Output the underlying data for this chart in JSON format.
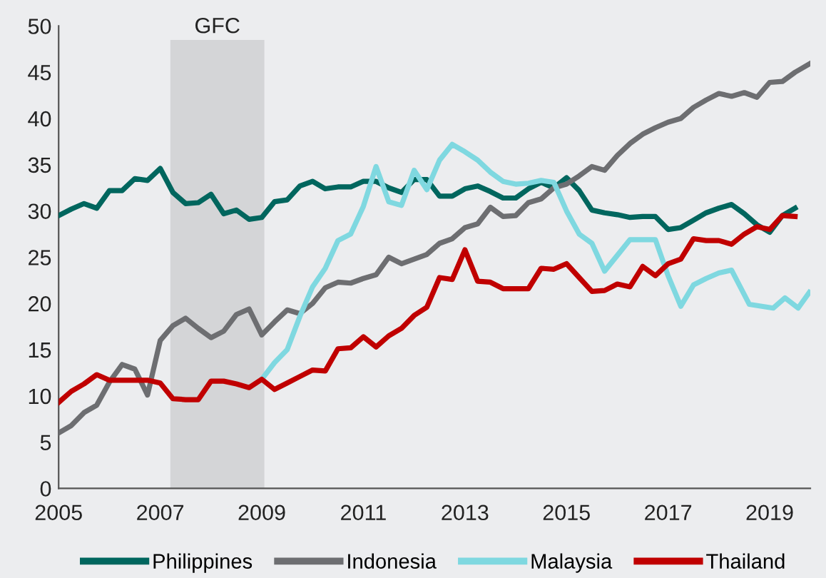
{
  "chart_data": {
    "type": "line",
    "xlim": [
      2005,
      2019.8
    ],
    "xticks": [
      2005,
      2007,
      2009,
      2011,
      2013,
      2015,
      2017,
      2019
    ],
    "ylim": [
      0,
      50
    ],
    "yticks": [
      0,
      5,
      10,
      15,
      20,
      25,
      30,
      35,
      40,
      45,
      50
    ],
    "grid": false,
    "legend": "bottom",
    "line_style": "solid",
    "marker": "none",
    "bands": [
      {
        "axis": "x",
        "from": 2007.2,
        "to": 2009.05,
        "label": "GFC",
        "color": "#d4d5d7"
      }
    ],
    "series": [
      {
        "name": "Philippines",
        "color": "#00665e",
        "x": [
          2005,
          2005.25,
          2005.5,
          2005.75,
          2006,
          2006.25,
          2006.5,
          2006.75,
          2007,
          2007.25,
          2007.5,
          2007.75,
          2008,
          2008.25,
          2008.5,
          2008.75,
          2009,
          2009.25,
          2009.5,
          2009.75,
          2010,
          2010.25,
          2010.5,
          2010.75,
          2011,
          2011.25,
          2011.5,
          2011.75,
          2012,
          2012.25,
          2012.5,
          2012.75,
          2013,
          2013.25,
          2013.5,
          2013.75,
          2014,
          2014.25,
          2014.5,
          2014.75,
          2015,
          2015.25,
          2015.5,
          2015.75,
          2016,
          2016.25,
          2016.5,
          2016.75,
          2017,
          2017.25,
          2017.5,
          2017.75,
          2018,
          2018.25,
          2018.5,
          2018.75,
          2019,
          2019.25,
          2019.5
        ],
        "values": [
          29.5,
          30.2,
          30.8,
          30.3,
          32.2,
          32.2,
          33.5,
          33.3,
          34.6,
          32.0,
          30.8,
          30.9,
          31.8,
          29.7,
          30.1,
          29.1,
          29.3,
          31.0,
          31.2,
          32.7,
          33.2,
          32.4,
          32.6,
          32.6,
          33.2,
          33.2,
          32.5,
          32.0,
          33.4,
          33.4,
          31.6,
          31.6,
          32.4,
          32.7,
          32.1,
          31.4,
          31.4,
          32.4,
          33.1,
          32.5,
          33.6,
          32.2,
          30.1,
          29.8,
          29.6,
          29.3,
          29.4,
          29.4,
          28.0,
          28.2,
          29.0,
          29.8,
          30.3,
          30.7,
          29.7,
          28.5,
          27.7,
          29.5,
          30.3
        ]
      },
      {
        "name": "Indonesia",
        "color": "#6d6e71",
        "x": [
          2005,
          2005.25,
          2005.5,
          2005.75,
          2006,
          2006.25,
          2006.5,
          2006.75,
          2007,
          2007.25,
          2007.5,
          2007.75,
          2008,
          2008.25,
          2008.5,
          2008.75,
          2009,
          2009.25,
          2009.5,
          2009.75,
          2010,
          2010.25,
          2010.5,
          2010.75,
          2011,
          2011.25,
          2011.5,
          2011.75,
          2012,
          2012.25,
          2012.5,
          2012.75,
          2013,
          2013.25,
          2013.5,
          2013.75,
          2014,
          2014.25,
          2014.5,
          2014.75,
          2015,
          2015.25,
          2015.5,
          2015.75,
          2016,
          2016.25,
          2016.5,
          2016.75,
          2017,
          2017.25,
          2017.5,
          2017.75,
          2018,
          2018.25,
          2018.5,
          2018.75,
          2019,
          2019.25,
          2019.5,
          2019.78
        ],
        "values": [
          6.0,
          6.8,
          8.2,
          9.0,
          11.5,
          13.4,
          12.9,
          10.1,
          16.0,
          17.6,
          18.4,
          17.3,
          16.3,
          17.0,
          18.8,
          19.4,
          16.6,
          18.0,
          19.3,
          18.9,
          20.0,
          21.7,
          22.3,
          22.2,
          22.7,
          23.1,
          25.0,
          24.3,
          24.8,
          25.3,
          26.5,
          27.0,
          28.2,
          28.6,
          30.4,
          29.4,
          29.5,
          30.9,
          31.3,
          32.5,
          32.9,
          33.8,
          34.8,
          34.4,
          36.0,
          37.3,
          38.3,
          39.0,
          39.6,
          40.0,
          41.2,
          42.0,
          42.7,
          42.4,
          42.8,
          42.3,
          43.9,
          44.0,
          45.0,
          45.9
        ]
      },
      {
        "name": "Malaysia",
        "color": "#7fd8e0",
        "x": [
          2009,
          2009.25,
          2009.5,
          2009.75,
          2010,
          2010.25,
          2010.5,
          2010.75,
          2011,
          2011.25,
          2011.5,
          2011.75,
          2012,
          2012.25,
          2012.5,
          2012.75,
          2013,
          2013.25,
          2013.5,
          2013.75,
          2014,
          2014.25,
          2014.5,
          2014.75,
          2015,
          2015.25,
          2015.5,
          2015.75,
          2016,
          2016.25,
          2016.5,
          2016.75,
          2017,
          2017.25,
          2017.5,
          2017.75,
          2018,
          2018.25,
          2018.6,
          2019.07,
          2019.3,
          2019.56,
          2019.78
        ],
        "values": [
          11.8,
          13.6,
          15.0,
          18.6,
          21.8,
          23.8,
          26.8,
          27.5,
          30.5,
          34.8,
          31.0,
          30.6,
          34.4,
          32.3,
          35.5,
          37.2,
          36.4,
          35.5,
          34.2,
          33.2,
          32.9,
          33.0,
          33.3,
          33.1,
          30.0,
          27.5,
          26.5,
          23.5,
          25.2,
          26.9,
          26.9,
          26.9,
          23.0,
          19.7,
          22.0,
          22.7,
          23.3,
          23.6,
          19.9,
          19.5,
          20.6,
          19.5,
          21.2
        ]
      },
      {
        "name": "Thailand",
        "color": "#c00000",
        "x": [
          2005,
          2005.25,
          2005.5,
          2005.75,
          2006,
          2006.25,
          2006.5,
          2006.75,
          2007,
          2007.25,
          2007.5,
          2007.75,
          2008,
          2008.25,
          2008.5,
          2008.75,
          2009,
          2009.25,
          2009.5,
          2009.75,
          2010,
          2010.25,
          2010.5,
          2010.75,
          2011,
          2011.25,
          2011.5,
          2011.75,
          2012,
          2012.25,
          2012.5,
          2012.75,
          2013,
          2013.25,
          2013.5,
          2013.75,
          2014,
          2014.25,
          2014.5,
          2014.75,
          2015,
          2015.25,
          2015.5,
          2015.75,
          2016,
          2016.25,
          2016.5,
          2016.75,
          2017,
          2017.25,
          2017.5,
          2017.75,
          2018,
          2018.25,
          2018.5,
          2018.75,
          2019,
          2019.25,
          2019.5
        ],
        "values": [
          9.3,
          10.5,
          11.3,
          12.3,
          11.7,
          11.7,
          11.7,
          11.7,
          11.4,
          9.7,
          9.6,
          9.6,
          11.6,
          11.6,
          11.3,
          10.9,
          11.8,
          10.7,
          11.4,
          12.1,
          12.8,
          12.7,
          15.1,
          15.2,
          16.4,
          15.3,
          16.5,
          17.3,
          18.7,
          19.6,
          22.8,
          22.6,
          25.8,
          22.4,
          22.3,
          21.6,
          21.6,
          21.6,
          23.8,
          23.7,
          24.3,
          22.8,
          21.3,
          21.4,
          22.1,
          21.8,
          24.0,
          23.0,
          24.3,
          24.8,
          27.0,
          26.8,
          26.8,
          26.4,
          27.5,
          28.3,
          28.0,
          29.5,
          29.4
        ]
      }
    ]
  }
}
